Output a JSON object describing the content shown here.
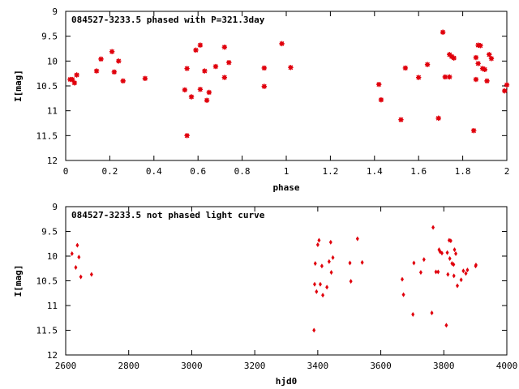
{
  "colors": {
    "point": "#e0000c",
    "frame": "#000000",
    "background": "#ffffff"
  },
  "chart_data": [
    {
      "type": "scatter",
      "title": "084527-3233.5 phased with P=321.3day",
      "xlabel": "phase",
      "ylabel": "I[mag]",
      "xlim": [
        0,
        2
      ],
      "ylim": [
        9,
        12
      ],
      "y_inverted": true,
      "grid": false,
      "legend": "none",
      "x_ticks": [
        "0",
        "0.2",
        "0.4",
        "0.6",
        "0.8",
        "1",
        "1.2",
        "1.4",
        "1.6",
        "1.8",
        "2"
      ],
      "y_ticks": [
        "9",
        "9.5",
        "10",
        "10.5",
        "11",
        "11.5",
        "12"
      ],
      "marker": "star",
      "series": [
        {
          "x": [
            0.02,
            0.03,
            0.04,
            0.05,
            0.14,
            0.16,
            0.21,
            0.22,
            0.24,
            0.26,
            0.36,
            0.54,
            0.55,
            0.55,
            0.57,
            0.59,
            0.61,
            0.61,
            0.63,
            0.64,
            0.65,
            0.68,
            0.72,
            0.72,
            0.74,
            0.9,
            0.9,
            0.98,
            1.02,
            1.42,
            1.43,
            1.52,
            1.54,
            1.6,
            1.64,
            1.69,
            1.71,
            1.72,
            1.74,
            1.74,
            1.75,
            1.76,
            1.85,
            1.86,
            1.86,
            1.87,
            1.87,
            1.88,
            1.89,
            1.9,
            1.91,
            1.92,
            1.93,
            1.99,
            2.0
          ],
          "y": [
            10.37,
            10.37,
            10.44,
            10.28,
            10.2,
            9.96,
            9.81,
            10.22,
            10.0,
            10.4,
            10.35,
            10.58,
            11.5,
            10.15,
            10.72,
            9.78,
            9.68,
            10.57,
            10.2,
            10.79,
            10.63,
            10.11,
            9.72,
            10.33,
            10.03,
            10.14,
            10.51,
            9.65,
            10.13,
            10.47,
            10.78,
            11.18,
            10.14,
            10.33,
            10.07,
            11.15,
            9.42,
            10.32,
            10.32,
            9.87,
            9.91,
            9.94,
            11.4,
            9.93,
            10.37,
            9.68,
            10.05,
            9.69,
            10.15,
            10.17,
            10.4,
            9.87,
            9.95,
            10.6,
            10.48
          ]
        }
      ]
    },
    {
      "type": "scatter",
      "title": "084527-3233.5 not phased light curve",
      "xlabel": "hjd0",
      "ylabel": "I[mag]",
      "xlim": [
        2600,
        4000
      ],
      "ylim": [
        9,
        12
      ],
      "y_inverted": true,
      "grid": false,
      "legend": "none",
      "x_ticks": [
        "2600",
        "2800",
        "3000",
        "3200",
        "3400",
        "3600",
        "3800",
        "4000"
      ],
      "y_ticks": [
        "9",
        "9.5",
        "10",
        "10.5",
        "11",
        "11.5",
        "12"
      ],
      "marker": "diamond",
      "series": [
        {
          "x": [
            2620,
            2632,
            2637,
            2642,
            2648,
            2682,
            3388,
            3390,
            3392,
            3396,
            3400,
            3404,
            3408,
            3413,
            3416,
            3429,
            3436,
            3441,
            3443,
            3448,
            3502,
            3505,
            3526,
            3541,
            3668,
            3672,
            3702,
            3705,
            3727,
            3737,
            3762,
            3766,
            3775,
            3782,
            3785,
            3788,
            3794,
            3808,
            3811,
            3813,
            3817,
            3819,
            3822,
            3826,
            3831,
            3832,
            3834,
            3838,
            3843,
            3855,
            3862,
            3870,
            3875,
            3901,
            3902
          ],
          "y": [
            9.95,
            10.23,
            9.78,
            10.02,
            10.42,
            10.37,
            11.5,
            10.57,
            10.15,
            10.72,
            9.77,
            9.68,
            10.57,
            10.2,
            10.79,
            10.63,
            10.11,
            9.72,
            10.33,
            10.03,
            10.14,
            10.51,
            9.65,
            10.13,
            10.47,
            10.78,
            11.18,
            10.14,
            10.33,
            10.07,
            11.15,
            9.42,
            10.32,
            10.32,
            9.87,
            9.91,
            9.94,
            11.4,
            9.93,
            10.37,
            9.68,
            10.05,
            9.69,
            10.15,
            10.17,
            10.4,
            9.87,
            9.95,
            10.6,
            10.48,
            10.3,
            10.35,
            10.28,
            10.2,
            10.18
          ]
        }
      ]
    }
  ]
}
